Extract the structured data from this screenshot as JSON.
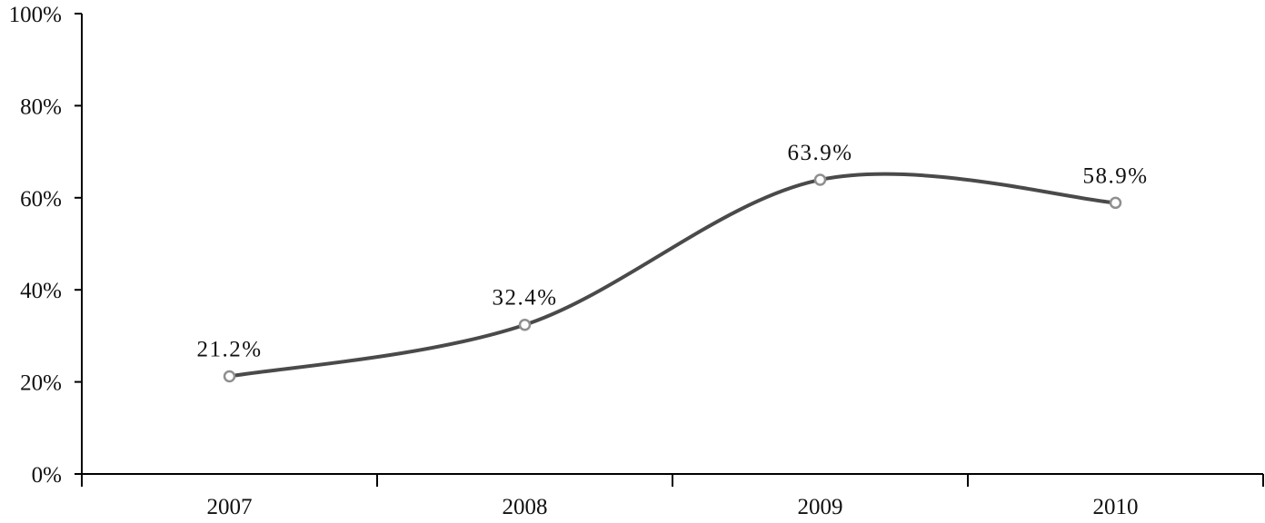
{
  "chart_data": {
    "type": "line",
    "title": "",
    "xlabel": "",
    "ylabel": "",
    "categories": [
      "2007",
      "2008",
      "2009",
      "2010"
    ],
    "series": [
      {
        "values": [
          21.2,
          32.4,
          63.9,
          58.9
        ],
        "data_labels": [
          "21.2%",
          "32.4%",
          "63.9%",
          "58.9%"
        ],
        "color": "#4a4a4a",
        "marker": "hollow-circle",
        "smooth": true
      }
    ],
    "ylim": [
      0,
      100
    ],
    "y_ticks": [
      0,
      20,
      40,
      60,
      80,
      100
    ],
    "y_tick_labels": [
      "0%",
      "20%",
      "40%",
      "60%",
      "80%",
      "100%"
    ],
    "grid": false,
    "legend": "none"
  }
}
